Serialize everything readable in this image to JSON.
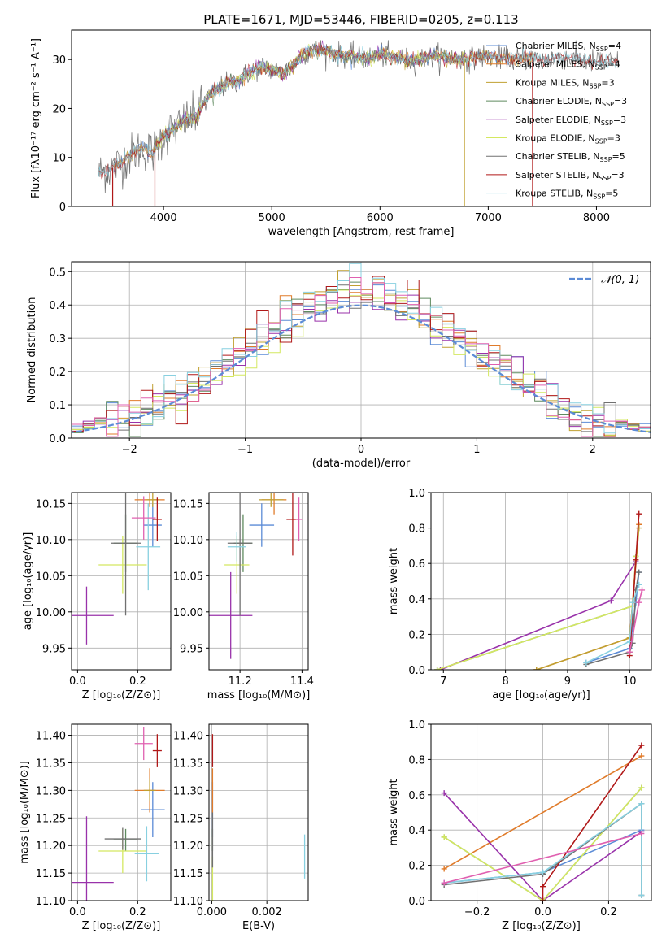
{
  "figure_title": "PLATE=1671, MJD=53446, FIBERID=0205, z=0.113",
  "colors": {
    "Chabrier MILES": "#5b8bd6",
    "Salpeter MILES": "#e07b2a",
    "Kroupa MILES": "#c0a030",
    "Chabrier ELODIE": "#5f8a5f",
    "Salpeter ELODIE": "#9932aa",
    "Kroupa ELODIE": "#d4e860",
    "Chabrier STELIB": "#707070",
    "Salpeter STELIB": "#b01818",
    "Kroupa STELIB": "#88d0e0",
    "pink": "#e060b0",
    "normal_curve": "#5b8bd6"
  },
  "chart_data": [
    {
      "id": "spectrum",
      "type": "line",
      "title": "PLATE=1671, MJD=53446, FIBERID=0205, z=0.113",
      "xlabel": "wavelength [Angstrom, rest frame]",
      "ylabel": "Flux [fλ10⁻¹⁷ erg cm⁻² s⁻¹ A⁻¹]",
      "xlim": [
        3150,
        8500
      ],
      "ylim": [
        0,
        36
      ],
      "xticks": [
        4000,
        5000,
        6000,
        7000,
        8000
      ],
      "yticks": [
        0,
        10,
        20,
        30
      ],
      "legend_position": "top-right",
      "legend": [
        {
          "name": "Chabrier MILES, N_SSP=4",
          "label_main": "Chabrier MILES, N",
          "label_sub": "SSP",
          "label_tail": "=4"
        },
        {
          "name": "Salpeter MILES, N_SSP=4",
          "label_main": "Salpeter MILES, N",
          "label_sub": "SSP",
          "label_tail": "=4"
        },
        {
          "name": "Kroupa MILES, N_SSP=3",
          "label_main": "Kroupa MILES, N",
          "label_sub": "SSP",
          "label_tail": "=3"
        },
        {
          "name": "Chabrier ELODIE, N_SSP=3",
          "label_main": "Chabrier ELODIE, N",
          "label_sub": "SSP",
          "label_tail": "=3"
        },
        {
          "name": "Salpeter ELODIE, N_SSP=3",
          "label_main": "Salpeter ELODIE, N",
          "label_sub": "SSP",
          "label_tail": "=3"
        },
        {
          "name": "Kroupa ELODIE, N_SSP=3",
          "label_main": "Kroupa ELODIE, N",
          "label_sub": "SSP",
          "label_tail": "=3"
        },
        {
          "name": "Chabrier STELIB, N_SSP=5",
          "label_main": "Chabrier STELIB, N",
          "label_sub": "SSP",
          "label_tail": "=5"
        },
        {
          "name": "Salpeter STELIB, N_SSP=3",
          "label_main": "Salpeter STELIB, N",
          "label_sub": "SSP",
          "label_tail": "=3"
        },
        {
          "name": "Kroupa STELIB, N_SSP=5",
          "label_main": "Kroupa STELIB, N",
          "label_sub": "SSP",
          "label_tail": "=5"
        }
      ],
      "envelope": {
        "x": [
          3400,
          3500,
          3600,
          3700,
          3800,
          3900,
          4000,
          4100,
          4200,
          4300,
          4400,
          4500,
          4600,
          4700,
          4800,
          4900,
          5000,
          5100,
          5200,
          5300,
          5400,
          5500,
          5600,
          5700,
          5800,
          5900,
          6000,
          6100,
          6200,
          6300,
          6400,
          6500,
          6600,
          6700,
          6800,
          6900,
          7000,
          7100,
          7200,
          7300,
          7400,
          7500,
          7600,
          7700,
          7800,
          7900,
          8000,
          8100,
          8200
        ],
        "y": [
          6.8,
          7.5,
          8.8,
          10.5,
          12,
          11,
          14.5,
          15.8,
          17.5,
          18.5,
          22,
          24,
          25.2,
          25.8,
          27.5,
          28.5,
          28,
          27.2,
          28.8,
          31.5,
          32,
          31.8,
          31,
          30.8,
          30.5,
          30.2,
          31,
          30.5,
          30,
          29.8,
          30.2,
          30.8,
          30.5,
          30.2,
          30,
          30.5,
          30.8,
          30.3,
          30,
          30.2,
          30.5,
          29.8,
          30.2,
          30.5,
          30,
          29.8,
          29.5,
          29.5,
          29.4
        ]
      },
      "dropouts": [
        {
          "x": 3530,
          "y": 0
        },
        {
          "x": 3920,
          "y": 0
        },
        {
          "x": 6780,
          "y": 0
        },
        {
          "x": 7410,
          "y": 0
        }
      ]
    },
    {
      "id": "residuals",
      "type": "histogram",
      "xlabel": "(data-model)/error",
      "ylabel": "Normed distribution",
      "xlim": [
        -2.5,
        2.5
      ],
      "ylim": [
        0,
        0.53
      ],
      "xticks": [
        -2,
        -1,
        0,
        1,
        2
      ],
      "yticks": [
        0.0,
        0.1,
        0.2,
        0.3,
        0.4,
        0.5
      ],
      "legend_position": "top-right",
      "curve_label": "𝒩(0, 1)",
      "bin_width": 0.1
    },
    {
      "id": "age-vs-Z",
      "type": "errorbar",
      "xlabel": "Z [log₁₀(Z/Z⊙)]",
      "ylabel": "age  [log₁₀(age/yr)]",
      "xlim": [
        -0.02,
        0.31
      ],
      "ylim": [
        9.92,
        10.165
      ],
      "xticks": [
        0.0,
        0.2
      ],
      "yticks": [
        9.95,
        10.0,
        10.05,
        10.1,
        10.15
      ],
      "points": [
        {
          "c": "Chabrier MILES",
          "x": 0.25,
          "xe": 0.03,
          "y": 10.12,
          "ye": 0.03
        },
        {
          "c": "Salpeter MILES",
          "x": 0.24,
          "xe": 0.05,
          "y": 10.155,
          "ye": 0.01
        },
        {
          "c": "Kroupa MILES",
          "x": 0.25,
          "xe": 0.02,
          "y": 10.155,
          "ye": 0.01
        },
        {
          "c": "Chabrier ELODIE",
          "x": 0.16,
          "xe": 0.04,
          "y": 10.095,
          "ye": 0.04
        },
        {
          "c": "Salpeter ELODIE",
          "x": 0.03,
          "xe": 0.09,
          "y": 9.995,
          "ye": 0.04
        },
        {
          "c": "Kroupa ELODIE",
          "x": 0.15,
          "xe": 0.08,
          "y": 10.065,
          "ye": 0.04
        },
        {
          "c": "Chabrier STELIB",
          "x": 0.16,
          "xe": 0.05,
          "y": 10.095,
          "ye": 0.1
        },
        {
          "c": "Salpeter STELIB",
          "x": 0.265,
          "xe": 0.015,
          "y": 10.128,
          "ye": 0.03
        },
        {
          "c": "Kroupa STELIB",
          "x": 0.235,
          "xe": 0.04,
          "y": 10.09,
          "ye": 0.06
        },
        {
          "c": "pink",
          "x": 0.22,
          "xe": 0.04,
          "y": 10.13,
          "ye": 0.03
        }
      ]
    },
    {
      "id": "age-vs-mass",
      "type": "errorbar",
      "xlabel": "mass [log₁₀(M/M⊙)]",
      "ylabel": "",
      "xlim": [
        11.1,
        11.42
      ],
      "ylim": [
        9.92,
        10.165
      ],
      "xticks": [
        11.2,
        11.4
      ],
      "yticks": [
        9.95,
        10.0,
        10.05,
        10.1,
        10.15
      ],
      "points": [
        {
          "c": "Chabrier MILES",
          "x": 11.27,
          "xe": 0.04,
          "y": 10.12,
          "ye": 0.03
        },
        {
          "c": "Salpeter MILES",
          "x": 11.31,
          "xe": 0.04,
          "y": 10.155,
          "ye": 0.02
        },
        {
          "c": "Kroupa MILES",
          "x": 11.3,
          "xe": 0.04,
          "y": 10.155,
          "ye": 0.01
        },
        {
          "c": "Chabrier ELODIE",
          "x": 11.21,
          "xe": 0.03,
          "y": 10.095,
          "ye": 0.04
        },
        {
          "c": "Salpeter ELODIE",
          "x": 11.17,
          "xe": 0.07,
          "y": 9.995,
          "ye": 0.06
        },
        {
          "c": "Kroupa ELODIE",
          "x": 11.19,
          "xe": 0.04,
          "y": 10.065,
          "ye": 0.04
        },
        {
          "c": "Chabrier STELIB",
          "x": 11.2,
          "xe": 0.04,
          "y": 10.095,
          "ye": 0.1
        },
        {
          "c": "Salpeter STELIB",
          "x": 11.37,
          "xe": 0.02,
          "y": 10.128,
          "ye": 0.05
        },
        {
          "c": "Kroupa STELIB",
          "x": 11.19,
          "xe": 0.03,
          "y": 10.09,
          "ye": 0.02
        },
        {
          "c": "pink",
          "x": 11.39,
          "xe": 0.01,
          "y": 10.128,
          "ye": 0.03
        }
      ]
    },
    {
      "id": "mass-weight-vs-age",
      "type": "line",
      "xlabel": "age  [log₁₀(age/yr)]",
      "ylabel": "mass weight",
      "xlim": [
        6.8,
        10.35
      ],
      "ylim": [
        0,
        1
      ],
      "xticks": [
        7,
        8,
        9,
        10
      ],
      "yticks": [
        0.0,
        0.2,
        0.4,
        0.6,
        0.8,
        1.0
      ],
      "series": [
        {
          "c": "Chabrier MILES",
          "x": [
            9.3,
            10.0,
            10.1,
            10.15
          ],
          "y": [
            0.04,
            0.12,
            0.38,
            0.55
          ]
        },
        {
          "c": "Salpeter MILES",
          "x": [
            8.5,
            10.0,
            10.15
          ],
          "y": [
            0.0,
            0.18,
            0.82
          ]
        },
        {
          "c": "Kroupa MILES",
          "x": [
            8.5,
            10.0,
            10.15
          ],
          "y": [
            0.0,
            0.18,
            0.8
          ]
        },
        {
          "c": "Chabrier ELODIE",
          "x": [
            6.9,
            10.05,
            10.1
          ],
          "y": [
            0.0,
            0.36,
            0.64
          ]
        },
        {
          "c": "Salpeter ELODIE",
          "x": [
            6.95,
            9.7,
            10.1
          ],
          "y": [
            0.0,
            0.39,
            0.61
          ]
        },
        {
          "c": "Kroupa ELODIE",
          "x": [
            6.9,
            10.05,
            10.1
          ],
          "y": [
            0.0,
            0.36,
            0.64
          ]
        },
        {
          "c": "Chabrier STELIB",
          "x": [
            9.3,
            10.0,
            10.05,
            10.1,
            10.15
          ],
          "y": [
            0.03,
            0.1,
            0.15,
            0.45,
            0.55
          ]
        },
        {
          "c": "Salpeter STELIB",
          "x": [
            10.0,
            10.1,
            10.15
          ],
          "y": [
            0.08,
            0.62,
            0.88
          ]
        },
        {
          "c": "Kroupa STELIB",
          "x": [
            9.3,
            10.0,
            10.05,
            10.15
          ],
          "y": [
            0.04,
            0.16,
            0.38,
            0.48
          ]
        },
        {
          "c": "pink",
          "x": [
            10.0,
            10.15,
            10.2
          ],
          "y": [
            0.1,
            0.38,
            0.45
          ]
        }
      ]
    },
    {
      "id": "mass-vs-Z",
      "type": "errorbar",
      "xlabel": "Z [log₁₀(Z/Z⊙)]",
      "ylabel": "mass [log₁₀(M/M⊙)]",
      "xlim": [
        -0.02,
        0.31
      ],
      "ylim": [
        11.1,
        11.42
      ],
      "xticks": [
        0.0,
        0.2
      ],
      "yticks": [
        11.1,
        11.15,
        11.2,
        11.25,
        11.3,
        11.35,
        11.4
      ],
      "points": [
        {
          "c": "Chabrier MILES",
          "x": 0.25,
          "xe": 0.04,
          "y": 11.265,
          "ye": 0.05
        },
        {
          "c": "Salpeter MILES",
          "x": 0.24,
          "xe": 0.05,
          "y": 11.3,
          "ye": 0.04
        },
        {
          "c": "Kroupa MILES",
          "x": 0.24,
          "xe": 0.02,
          "y": 11.3,
          "ye": 0.02
        },
        {
          "c": "Chabrier ELODIE",
          "x": 0.16,
          "xe": 0.04,
          "y": 11.21,
          "ye": 0.02
        },
        {
          "c": "Salpeter ELODIE",
          "x": 0.03,
          "xe": 0.09,
          "y": 11.133,
          "ye": 0.12
        },
        {
          "c": "Kroupa ELODIE",
          "x": 0.15,
          "xe": 0.08,
          "y": 11.19,
          "ye": 0.04
        },
        {
          "c": "Chabrier STELIB",
          "x": 0.15,
          "xe": 0.06,
          "y": 11.212,
          "ye": 0.02
        },
        {
          "c": "Salpeter STELIB",
          "x": 0.265,
          "xe": 0.015,
          "y": 11.372,
          "ye": 0.03
        },
        {
          "c": "Kroupa STELIB",
          "x": 0.23,
          "xe": 0.04,
          "y": 11.185,
          "ye": 0.05
        },
        {
          "c": "pink",
          "x": 0.22,
          "xe": 0.03,
          "y": 11.385,
          "ye": 0.03
        }
      ]
    },
    {
      "id": "mass-vs-ebv",
      "type": "errorbar",
      "xlabel": "E(B-V)",
      "ylabel": "",
      "xlim": [
        -0.0001,
        0.0035
      ],
      "ylim": [
        11.1,
        11.42
      ],
      "xticks": [
        0.0,
        0.002
      ],
      "yticks": [
        11.1,
        11.15,
        11.2,
        11.25,
        11.3,
        11.35,
        11.4
      ],
      "points": [
        {
          "c": "Chabrier MILES",
          "x": 3e-05,
          "xe": 0,
          "y": 11.265,
          "ye": 0.05
        },
        {
          "c": "Salpeter MILES",
          "x": 3e-05,
          "xe": 0,
          "y": 11.3,
          "ye": 0.04
        },
        {
          "c": "Chabrier ELODIE",
          "x": 3e-05,
          "xe": 0,
          "y": 11.21,
          "ye": 0.02
        },
        {
          "c": "Kroupa ELODIE",
          "x": 3e-05,
          "xe": 0,
          "y": 11.14,
          "ye": 0.04
        },
        {
          "c": "Chabrier STELIB",
          "x": 3e-05,
          "xe": 0,
          "y": 11.21,
          "ye": 0.05
        },
        {
          "c": "Salpeter STELIB",
          "x": 3e-05,
          "xe": 0,
          "y": 11.372,
          "ye": 0.03
        },
        {
          "c": "Kroupa STELIB",
          "x": 0.00337,
          "xe": 0,
          "y": 11.18,
          "ye": 0.04
        }
      ]
    },
    {
      "id": "mass-weight-vs-Z",
      "type": "line",
      "xlabel": "Z [log₁₀(Z/Z⊙)]",
      "ylabel": "mass weight",
      "xlim": [
        -0.34,
        0.33
      ],
      "ylim": [
        0,
        1
      ],
      "xticks": [
        -0.2,
        0.0,
        0.2
      ],
      "yticks": [
        0.0,
        0.2,
        0.4,
        0.6,
        0.8,
        1.0
      ],
      "series": [
        {
          "c": "Chabrier MILES",
          "x": [
            -0.3,
            0.0,
            0.3
          ],
          "y": [
            0.1,
            0.16,
            0.4
          ]
        },
        {
          "c": "Salpeter MILES",
          "x": [
            -0.3,
            0.3
          ],
          "y": [
            0.18,
            0.82
          ]
        },
        {
          "c": "Chabrier ELODIE",
          "x": [
            -0.3,
            0.0,
            0.3
          ],
          "y": [
            0.36,
            0.0,
            0.64
          ]
        },
        {
          "c": "Salpeter ELODIE",
          "x": [
            -0.3,
            0.0,
            0.3
          ],
          "y": [
            0.61,
            0.0,
            0.39
          ]
        },
        {
          "c": "Kroupa ELODIE",
          "x": [
            -0.3,
            0.0,
            0.3
          ],
          "y": [
            0.36,
            0.0,
            0.64
          ]
        },
        {
          "c": "Chabrier STELIB",
          "x": [
            -0.3,
            0.0,
            0.3,
            0.3
          ],
          "y": [
            0.09,
            0.15,
            0.55,
            0.03
          ]
        },
        {
          "c": "Salpeter STELIB",
          "x": [
            0.0,
            0.0,
            0.3
          ],
          "y": [
            0.0,
            0.08,
            0.88
          ]
        },
        {
          "c": "Kroupa STELIB",
          "x": [
            -0.3,
            0.0,
            0.3,
            0.3
          ],
          "y": [
            0.1,
            0.16,
            0.55,
            0.03
          ]
        },
        {
          "c": "pink",
          "x": [
            -0.3,
            0.3
          ],
          "y": [
            0.1,
            0.38
          ]
        }
      ]
    }
  ]
}
